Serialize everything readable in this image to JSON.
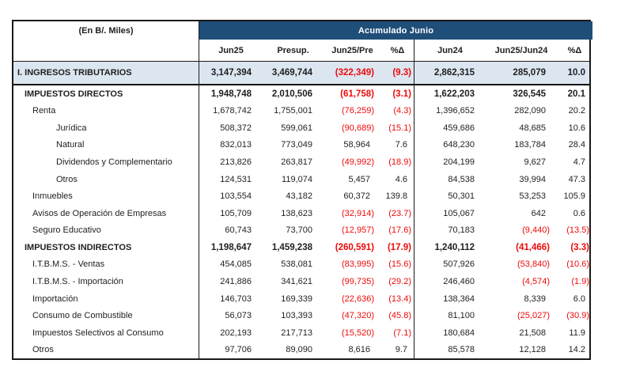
{
  "table": {
    "units_label": "(En B/. Miles)",
    "band_title": "Acumulado Junio",
    "columns": [
      "Jun25",
      "Presup.",
      "Jun25/Pre",
      "%Δ",
      "Jun24",
      "Jun25/Jun24",
      "%Δ"
    ],
    "total_row": {
      "label": "I. INGRESOS TRIBUTARIOS",
      "values": [
        "3,147,394",
        "3,469,744",
        "(322,349)",
        "(9.3)",
        "2,862,315",
        "285,079",
        "10.0"
      ]
    },
    "rows": [
      {
        "label": "IMPUESTOS DIRECTOS",
        "indent": 1,
        "bold": true,
        "values": [
          "1,948,748",
          "2,010,506",
          "(61,758)",
          "(3.1)",
          "1,622,203",
          "326,545",
          "20.1"
        ]
      },
      {
        "label": "Renta",
        "indent": 2,
        "bold": false,
        "values": [
          "1,678,742",
          "1,755,001",
          "(76,259)",
          "(4.3)",
          "1,396,652",
          "282,090",
          "20.2"
        ]
      },
      {
        "label": "Jurídica",
        "indent": 3,
        "bold": false,
        "values": [
          "508,372",
          "599,061",
          "(90,689)",
          "(15.1)",
          "459,686",
          "48,685",
          "10.6"
        ]
      },
      {
        "label": "Natural",
        "indent": 3,
        "bold": false,
        "values": [
          "832,013",
          "773,049",
          "58,964",
          "7.6",
          "648,230",
          "183,784",
          "28.4"
        ]
      },
      {
        "label": "Dividendos y Complementario",
        "indent": 3,
        "bold": false,
        "values": [
          "213,826",
          "263,817",
          "(49,992)",
          "(18.9)",
          "204,199",
          "9,627",
          "4.7"
        ]
      },
      {
        "label": "Otros",
        "indent": 3,
        "bold": false,
        "values": [
          "124,531",
          "119,074",
          "5,457",
          "4.6",
          "84,538",
          "39,994",
          "47.3"
        ]
      },
      {
        "label": "Inmuebles",
        "indent": 2,
        "bold": false,
        "values": [
          "103,554",
          "43,182",
          "60,372",
          "139.8",
          "50,301",
          "53,253",
          "105.9"
        ]
      },
      {
        "label": "Avisos de Operación de Empresas",
        "indent": 2,
        "bold": false,
        "values": [
          "105,709",
          "138,623",
          "(32,914)",
          "(23.7)",
          "105,067",
          "642",
          "0.6"
        ]
      },
      {
        "label": "Seguro Educativo",
        "indent": 2,
        "bold": false,
        "values": [
          "60,743",
          "73,700",
          "(12,957)",
          "(17.6)",
          "70,183",
          "(9,440)",
          "(13.5)"
        ]
      },
      {
        "label": "IMPUESTOS INDIRECTOS",
        "indent": 1,
        "bold": true,
        "values": [
          "1,198,647",
          "1,459,238",
          "(260,591)",
          "(17.9)",
          "1,240,112",
          "(41,466)",
          "(3.3)"
        ]
      },
      {
        "label": "I.T.B.M.S. - Ventas",
        "indent": 2,
        "bold": false,
        "values": [
          "454,085",
          "538,081",
          "(83,995)",
          "(15.6)",
          "507,926",
          "(53,840)",
          "(10.6)"
        ]
      },
      {
        "label": "I.T.B.M.S. - Importación",
        "indent": 2,
        "bold": false,
        "values": [
          "241,886",
          "341,621",
          "(99,735)",
          "(29.2)",
          "246,460",
          "(4,574)",
          "(1.9)"
        ]
      },
      {
        "label": "Importación",
        "indent": 2,
        "bold": false,
        "values": [
          "146,703",
          "169,339",
          "(22,636)",
          "(13.4)",
          "138,364",
          "8,339",
          "6.0"
        ]
      },
      {
        "label": "Consumo de Combustible",
        "indent": 2,
        "bold": false,
        "values": [
          "56,073",
          "103,393",
          "(47,320)",
          "(45.8)",
          "81,100",
          "(25,027)",
          "(30.9)"
        ]
      },
      {
        "label": "Impuestos Selectivos al Consumo",
        "indent": 2,
        "bold": false,
        "values": [
          "202,193",
          "217,713",
          "(15,520)",
          "(7.1)",
          "180,684",
          "21,508",
          "11.9"
        ]
      },
      {
        "label": "Otros",
        "indent": 2,
        "bold": false,
        "values": [
          "97,706",
          "89,090",
          "8,616",
          "9.7",
          "85,578",
          "12,128",
          "14.2"
        ]
      }
    ],
    "colors": {
      "band_bg": "#1F4E79",
      "band_text": "#FFFFFF",
      "total_row_bg": "#DCE6F1",
      "negative_text": "#EE0A0A",
      "text": "#1F1F1F",
      "border": "#1A1A1A"
    }
  }
}
